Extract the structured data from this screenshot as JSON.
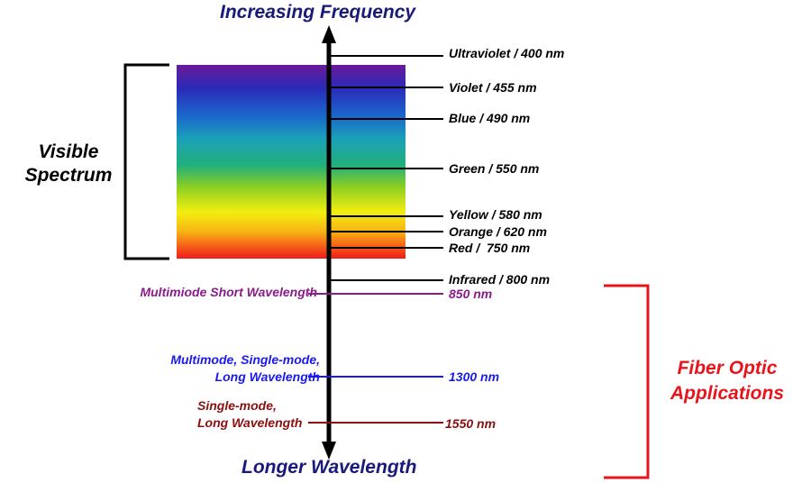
{
  "title_top": "Increasing Frequency",
  "title_bottom": "Longer Wavelength",
  "visible_spectrum": {
    "line1": "Visible",
    "line2": "Spectrum"
  },
  "fiber_optic": {
    "line1": "Fiber Optic",
    "line2": "Applications"
  },
  "spectrum_labels": [
    "Ultraviolet / 400 nm",
    "Violet / 455 nm",
    "Blue / 490 nm",
    "Green / 550 nm",
    "Yellow / 580 nm",
    "Orange / 620 nm",
    "Red /  750 nm",
    "Infrared / 800 nm"
  ],
  "fiber_windows": [
    {
      "description": [
        "Multimiode Short Wavelength"
      ],
      "value": "850 nm",
      "color": "#8b1a8b"
    },
    {
      "description": [
        "Multimode, Single-mode,",
        "Long Wavelength"
      ],
      "value": "1300 nm",
      "color": "#1a1aee"
    },
    {
      "description": [
        "Single-mode,",
        "Long Wavelength"
      ],
      "value": "1550 nm",
      "color": "#8b0f0f"
    }
  ],
  "colors": {
    "axis": "#000000",
    "title": "#1a1a7a",
    "bracket_fiber": "#e8141c",
    "spectrum_gradient": [
      "#6a1a9a",
      "#2a2ab8",
      "#1a66cc",
      "#1aa0b8",
      "#22b07a",
      "#8ccf22",
      "#f2ee10",
      "#f7b414",
      "#f45a18",
      "#ee1c1c"
    ]
  }
}
